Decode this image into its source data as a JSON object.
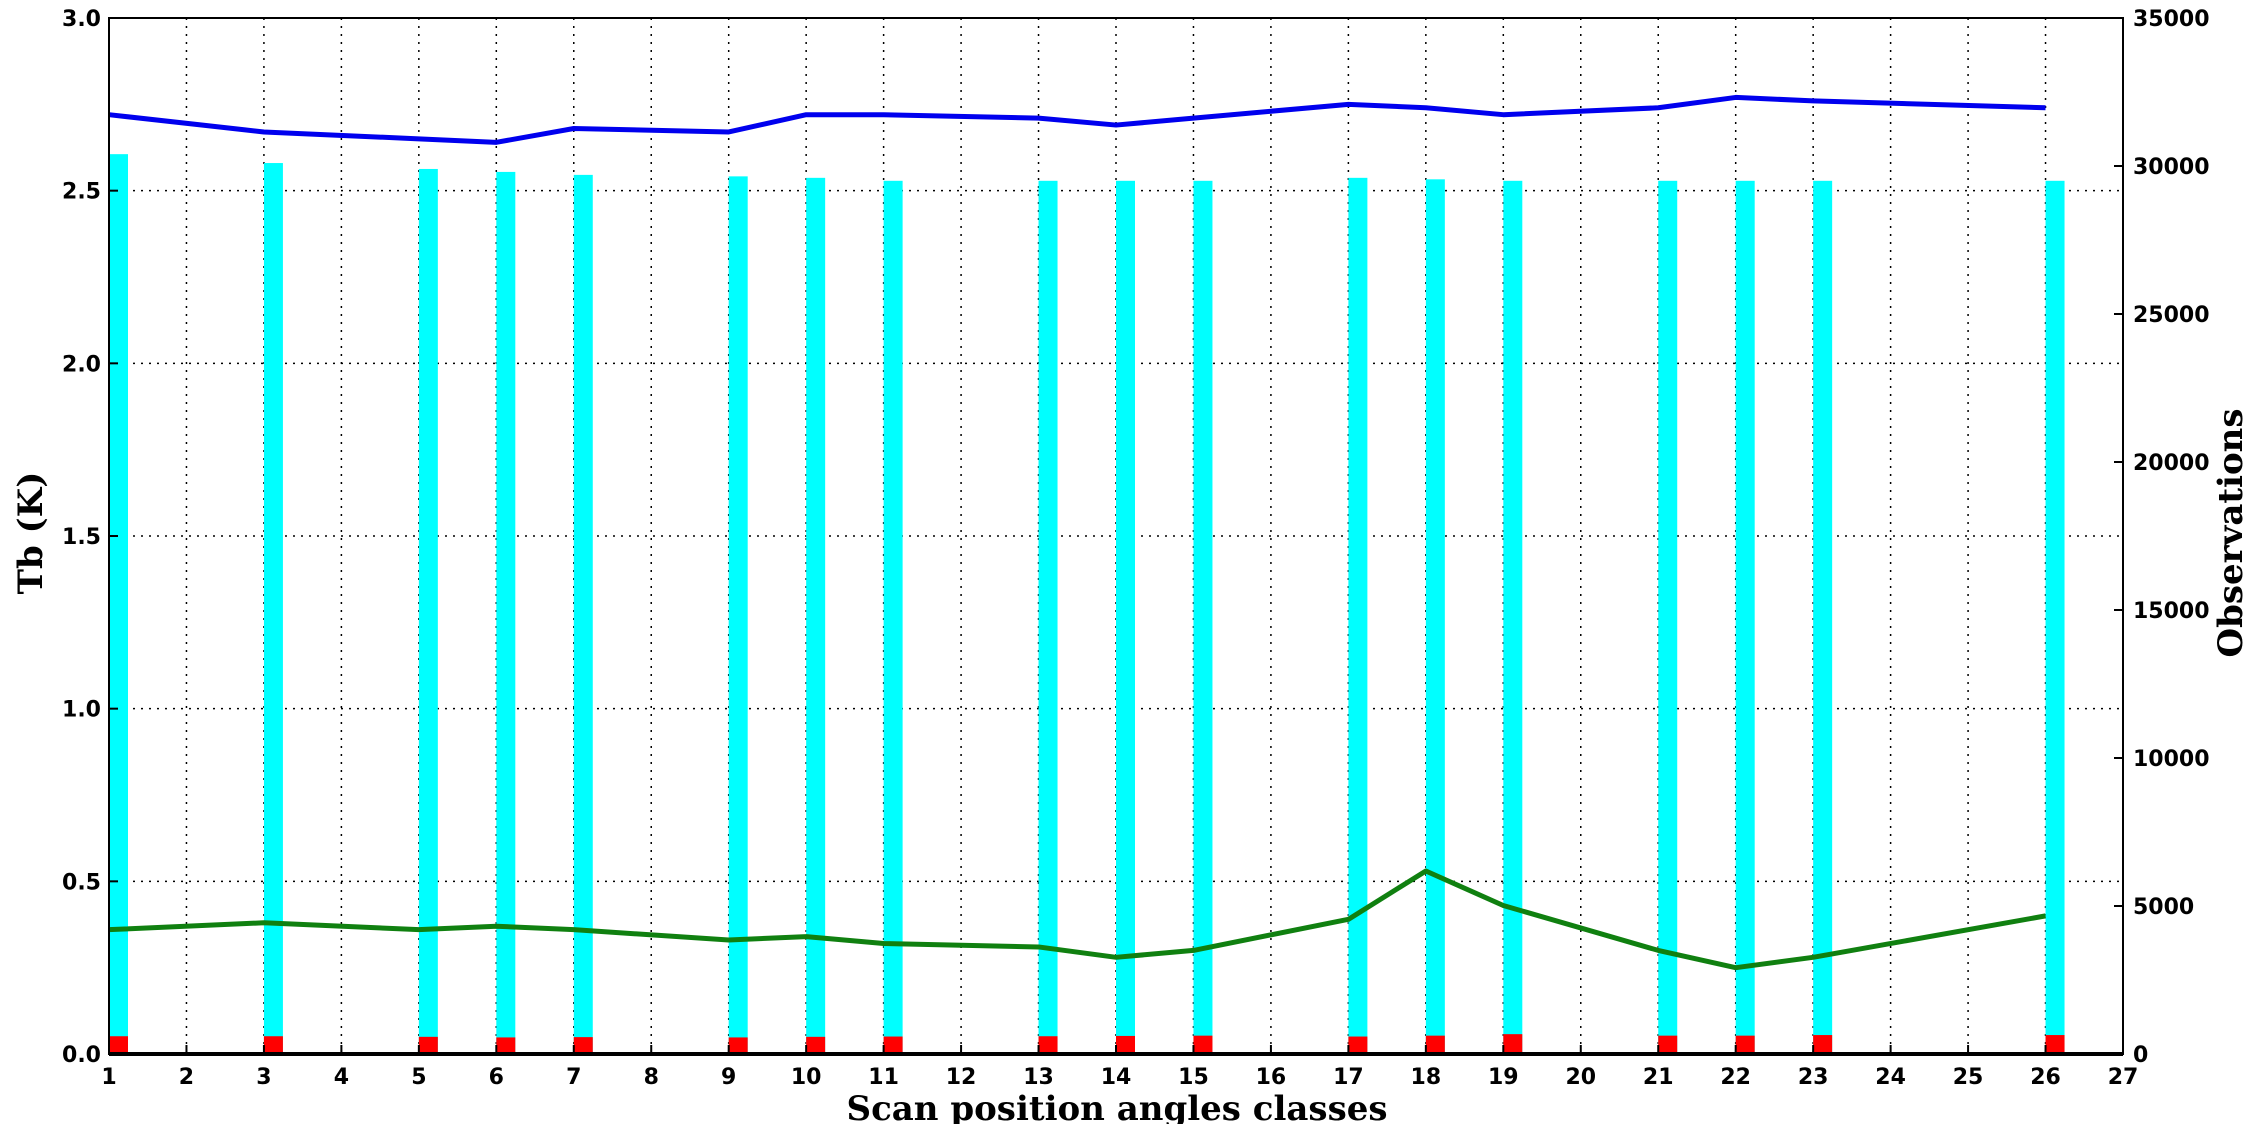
{
  "chart_data": {
    "type": "bar",
    "xlabel": "Scan position angles classes",
    "ylabel": "Tb (K)",
    "y2label": "Observations",
    "xlim": [
      1,
      27
    ],
    "ylim": [
      0,
      3.0
    ],
    "y2lim": [
      0,
      35000
    ],
    "grid": true,
    "x_ticks": [
      1,
      2,
      3,
      4,
      5,
      6,
      7,
      8,
      9,
      10,
      11,
      12,
      13,
      14,
      15,
      16,
      17,
      18,
      19,
      20,
      21,
      22,
      23,
      24,
      25,
      26,
      27
    ],
    "y_ticks": [
      "0.0",
      "0.5",
      "1.0",
      "1.5",
      "2.0",
      "2.5",
      "3.0"
    ],
    "y2_ticks": [
      "0",
      "5000",
      "10000",
      "15000",
      "20000",
      "25000",
      "30000",
      "35000"
    ],
    "colors": {
      "observations_total": "#00ffff",
      "observations_small": "#ff0000",
      "line_upper": "#0000ee",
      "line_lower": "#108010"
    },
    "bar_series": [
      {
        "axis": "right",
        "x": [
          1,
          3,
          5,
          6,
          7,
          9,
          10,
          11,
          13,
          14,
          15,
          17,
          18,
          19,
          21,
          22,
          23,
          26
        ],
        "values": [
          30400,
          30100,
          29900,
          29800,
          29700,
          29650,
          29600,
          29500,
          29500,
          29500,
          29500,
          29600,
          29550,
          29500,
          29500,
          29500,
          29500,
          29500
        ]
      },
      {
        "axis": "right",
        "x": [
          1,
          3,
          5,
          6,
          7,
          9,
          10,
          11,
          13,
          14,
          15,
          17,
          18,
          19,
          21,
          22,
          23,
          26
        ],
        "values": [
          600,
          600,
          580,
          560,
          570,
          560,
          580,
          590,
          600,
          610,
          620,
          590,
          620,
          670,
          620,
          620,
          640,
          640
        ]
      }
    ],
    "line_series": [
      {
        "axis": "left",
        "x": [
          1,
          3,
          5,
          6,
          7,
          9,
          10,
          11,
          13,
          14,
          15,
          17,
          18,
          19,
          21,
          22,
          23,
          26
        ],
        "values": [
          2.72,
          2.67,
          2.65,
          2.64,
          2.68,
          2.67,
          2.72,
          2.72,
          2.71,
          2.69,
          2.71,
          2.75,
          2.74,
          2.72,
          2.74,
          2.77,
          2.76,
          2.74
        ]
      },
      {
        "axis": "left",
        "x": [
          1,
          3,
          5,
          6,
          7,
          9,
          10,
          11,
          13,
          14,
          15,
          17,
          18,
          19,
          21,
          22,
          23,
          26
        ],
        "values": [
          0.36,
          0.38,
          0.36,
          0.37,
          0.36,
          0.33,
          0.34,
          0.32,
          0.31,
          0.28,
          0.3,
          0.39,
          0.53,
          0.43,
          0.3,
          0.25,
          0.28,
          0.4
        ]
      }
    ]
  }
}
